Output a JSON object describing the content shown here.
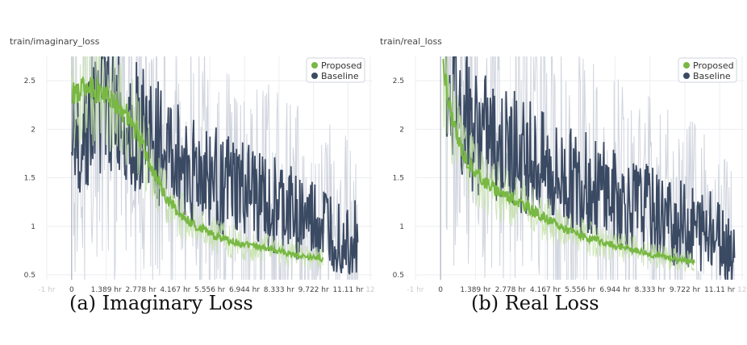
{
  "chart_data": [
    {
      "type": "line",
      "title": "train/imaginary_loss",
      "caption": "(a) Imaginary Loss",
      "x_tick_labels": [
        "-1 hr",
        "0",
        "1.389 hr",
        "2.778 hr",
        "4.167 hr",
        "5.556 hr",
        "6.944 hr",
        "8.333 hr",
        "9.722 hr",
        "11.11 hr",
        "12"
      ],
      "x_ticks": [
        -1,
        0,
        1.389,
        2.778,
        4.167,
        5.556,
        6.944,
        8.333,
        9.722,
        11.11,
        12
      ],
      "y_ticks": [
        0.5,
        1,
        1.5,
        2,
        2.5
      ],
      "y_tick_labels": [
        "0.5",
        "1",
        "1.5",
        "2",
        "2.5"
      ],
      "xlim": [
        -1,
        12.1
      ],
      "ylim": [
        0.45,
        2.75
      ],
      "legend_position": "top-right",
      "series": [
        {
          "name": "Proposed",
          "color": "#78b843",
          "end_hr": 10.1,
          "x": [
            0,
            0.3,
            0.6,
            1.0,
            1.389,
            1.8,
            2.2,
            2.778,
            3.3,
            3.8,
            4.167,
            4.7,
            5.2,
            5.556,
            6.0,
            6.5,
            6.944,
            7.5,
            8.0,
            8.333,
            8.8,
            9.2,
            9.722,
            10.1
          ],
          "y": [
            2.35,
            2.4,
            2.45,
            2.4,
            2.35,
            2.25,
            2.15,
            1.9,
            1.55,
            1.3,
            1.18,
            1.05,
            0.98,
            0.93,
            0.88,
            0.84,
            0.81,
            0.79,
            0.77,
            0.74,
            0.72,
            0.7,
            0.68,
            0.66
          ]
        },
        {
          "name": "Baseline",
          "color": "#3b4a63",
          "end_hr": 11.5,
          "x": [
            0,
            0.5,
            1.0,
            1.389,
            2.0,
            2.778,
            3.5,
            4.167,
            4.8,
            5.556,
            6.2,
            6.944,
            7.6,
            8.333,
            9.0,
            9.722,
            10.4,
            11.11,
            11.5
          ],
          "y": [
            1.8,
            2.05,
            2.2,
            2.25,
            2.15,
            2.0,
            1.85,
            1.7,
            1.6,
            1.5,
            1.42,
            1.35,
            1.28,
            1.2,
            1.12,
            1.05,
            0.98,
            0.92,
            0.88
          ]
        }
      ]
    },
    {
      "type": "line",
      "title": "train/real_loss",
      "caption": "(b) Real Loss",
      "x_tick_labels": [
        "-1 hr",
        "0",
        "1.389 hr",
        "2.778 hr",
        "4.167 hr",
        "5.556 hr",
        "6.944 hr",
        "8.333 hr",
        "9.722 hr",
        "11.11 hr",
        "12"
      ],
      "x_ticks": [
        -1,
        0,
        1.389,
        2.778,
        4.167,
        5.556,
        6.944,
        8.333,
        9.722,
        11.11,
        12
      ],
      "y_ticks": [
        0.5,
        1,
        1.5,
        2,
        2.5
      ],
      "y_tick_labels": [
        "0.5",
        "1",
        "1.5",
        "2",
        "2.5"
      ],
      "xlim": [
        -1,
        12.1
      ],
      "ylim": [
        0.45,
        2.75
      ],
      "legend_position": "top-right",
      "series": [
        {
          "name": "Proposed",
          "color": "#78b843",
          "end_hr": 10.1,
          "x": [
            0.1,
            0.3,
            0.6,
            1.0,
            1.389,
            1.8,
            2.2,
            2.778,
            3.3,
            3.8,
            4.167,
            4.7,
            5.2,
            5.556,
            6.0,
            6.5,
            6.944,
            7.5,
            8.0,
            8.333,
            8.8,
            9.2,
            9.722,
            10.1
          ],
          "y": [
            2.7,
            2.3,
            1.95,
            1.7,
            1.55,
            1.45,
            1.38,
            1.3,
            1.22,
            1.14,
            1.08,
            1.0,
            0.95,
            0.91,
            0.87,
            0.83,
            0.8,
            0.77,
            0.74,
            0.71,
            0.69,
            0.67,
            0.65,
            0.63
          ]
        },
        {
          "name": "Baseline",
          "color": "#3b4a63",
          "end_hr": 11.7,
          "x": [
            0.2,
            0.5,
            1.0,
            1.389,
            2.0,
            2.778,
            3.5,
            4.167,
            4.8,
            5.556,
            6.2,
            6.944,
            7.6,
            8.333,
            9.0,
            9.722,
            10.4,
            11.11,
            11.7
          ],
          "y": [
            2.7,
            2.4,
            2.1,
            2.0,
            1.9,
            1.8,
            1.7,
            1.6,
            1.5,
            1.45,
            1.38,
            1.3,
            1.22,
            1.15,
            1.08,
            1.02,
            0.96,
            0.9,
            0.8
          ]
        }
      ]
    }
  ]
}
